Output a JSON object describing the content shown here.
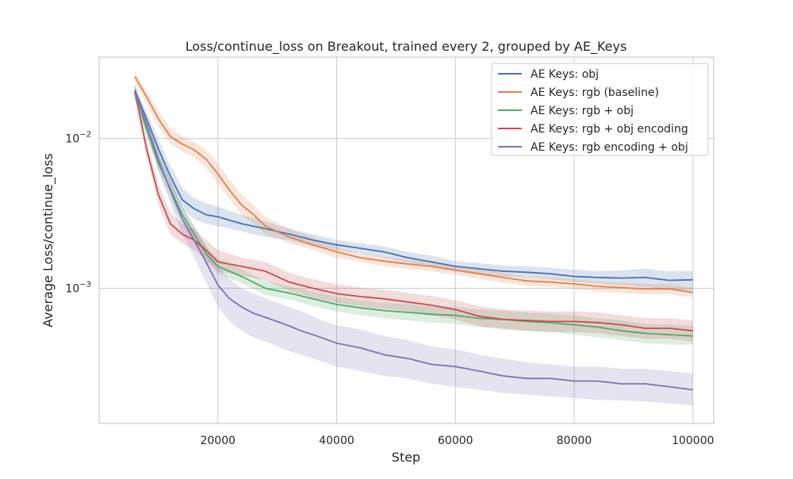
{
  "chart_data": {
    "type": "line",
    "title": "Loss/continue_loss on Breakout, trained every 2, grouped by AE_Keys",
    "xlabel": "Step",
    "ylabel": "Average Loss/continue_loss",
    "xlim": [
      0,
      103500
    ],
    "ylim": [
      0.000125,
      0.035
    ],
    "yscale": "log",
    "xticks": [
      20000,
      40000,
      60000,
      80000,
      100000
    ],
    "xtick_labels": [
      "20000",
      "40000",
      "60000",
      "80000",
      "100000"
    ],
    "yticks": [
      0.01,
      0.001
    ],
    "ytick_labels": [
      {
        "base": "10",
        "exp": "−2"
      },
      {
        "base": "10",
        "exp": "−3"
      }
    ],
    "grid": true,
    "legend_position": "top-right",
    "series": [
      {
        "name": "AE Keys: obj",
        "color": "#4c72b0",
        "x": [
          6000,
          8000,
          10000,
          12000,
          14000,
          16000,
          18000,
          20000,
          24000,
          28000,
          32000,
          36000,
          40000,
          44000,
          48000,
          52000,
          56000,
          60000,
          64000,
          68000,
          72000,
          76000,
          80000,
          84000,
          88000,
          92000,
          96000,
          100000
        ],
        "y": [
          0.021,
          0.0135,
          0.0085,
          0.0056,
          0.0039,
          0.0034,
          0.0031,
          0.003,
          0.0027,
          0.0025,
          0.0023,
          0.0021,
          0.00195,
          0.00185,
          0.00175,
          0.0016,
          0.0015,
          0.0014,
          0.00135,
          0.0013,
          0.00128,
          0.00125,
          0.0012,
          0.00118,
          0.00117,
          0.00118,
          0.00113,
          0.00114
        ],
        "lower": [
          0.019,
          0.012,
          0.0074,
          0.0048,
          0.0034,
          0.0029,
          0.0027,
          0.0026,
          0.0024,
          0.0022,
          0.0021,
          0.0019,
          0.0018,
          0.0017,
          0.0016,
          0.00148,
          0.00138,
          0.0013,
          0.00125,
          0.0012,
          0.00118,
          0.00115,
          0.0011,
          0.00108,
          0.00105,
          0.00102,
          0.00098,
          0.00097
        ],
        "upper": [
          0.023,
          0.015,
          0.0098,
          0.0066,
          0.0047,
          0.004,
          0.0037,
          0.0035,
          0.0031,
          0.0028,
          0.0025,
          0.0023,
          0.0021,
          0.002,
          0.0019,
          0.00175,
          0.00165,
          0.00152,
          0.00147,
          0.00142,
          0.0014,
          0.00137,
          0.00133,
          0.0013,
          0.00132,
          0.00135,
          0.0013,
          0.0013
        ]
      },
      {
        "name": "AE Keys: rgb (baseline)",
        "color": "#dd8452",
        "x": [
          6000,
          8000,
          10000,
          12000,
          14000,
          16000,
          18000,
          20000,
          22000,
          24000,
          26000,
          28000,
          32000,
          36000,
          40000,
          44000,
          48000,
          52000,
          56000,
          60000,
          64000,
          68000,
          72000,
          76000,
          80000,
          84000,
          88000,
          92000,
          96000,
          100000
        ],
        "y": [
          0.026,
          0.019,
          0.0135,
          0.0103,
          0.0092,
          0.0084,
          0.0073,
          0.0058,
          0.0045,
          0.0036,
          0.0031,
          0.0026,
          0.0022,
          0.00195,
          0.00175,
          0.0016,
          0.00152,
          0.00145,
          0.0014,
          0.00132,
          0.00125,
          0.00118,
          0.00112,
          0.0011,
          0.00107,
          0.00103,
          0.00101,
          0.00099,
          0.00099,
          0.00094
        ],
        "lower": [
          0.024,
          0.017,
          0.012,
          0.0092,
          0.0082,
          0.0075,
          0.0064,
          0.005,
          0.0039,
          0.0031,
          0.0027,
          0.0023,
          0.002,
          0.0018,
          0.0016,
          0.0015,
          0.0014,
          0.00135,
          0.0013,
          0.00123,
          0.00115,
          0.00109,
          0.00104,
          0.00102,
          0.00099,
          0.00095,
          0.00093,
          0.00091,
          0.00091,
          0.00087
        ],
        "upper": [
          0.028,
          0.021,
          0.0152,
          0.0118,
          0.0104,
          0.0095,
          0.0084,
          0.0068,
          0.0053,
          0.0042,
          0.0036,
          0.003,
          0.0025,
          0.0022,
          0.0019,
          0.0017,
          0.00162,
          0.00155,
          0.0015,
          0.00142,
          0.00135,
          0.00127,
          0.0012,
          0.00118,
          0.00115,
          0.00111,
          0.00109,
          0.00107,
          0.00107,
          0.00101
        ]
      },
      {
        "name": "AE Keys: rgb + obj",
        "color": "#55a868",
        "x": [
          6000,
          8000,
          10000,
          12000,
          14000,
          16000,
          18000,
          20000,
          24000,
          28000,
          32000,
          36000,
          40000,
          44000,
          48000,
          52000,
          56000,
          60000,
          64000,
          68000,
          72000,
          76000,
          80000,
          84000,
          88000,
          92000,
          96000,
          100000
        ],
        "y": [
          0.021,
          0.0115,
          0.0068,
          0.0046,
          0.0031,
          0.0023,
          0.0017,
          0.0014,
          0.0012,
          0.001,
          0.00093,
          0.00085,
          0.00078,
          0.00074,
          0.00071,
          0.00069,
          0.00067,
          0.00066,
          0.00063,
          0.00062,
          0.0006,
          0.00059,
          0.00057,
          0.00055,
          0.00052,
          0.0005,
          0.00049,
          0.00048
        ],
        "lower": [
          0.019,
          0.0102,
          0.006,
          0.004,
          0.0027,
          0.002,
          0.0015,
          0.00125,
          0.00108,
          0.0009,
          0.00084,
          0.00076,
          0.0007,
          0.00066,
          0.00063,
          0.00061,
          0.00059,
          0.00058,
          0.00055,
          0.00054,
          0.00052,
          0.00051,
          0.00049,
          0.00047,
          0.00045,
          0.00043,
          0.00042,
          0.00042
        ],
        "upper": [
          0.023,
          0.0128,
          0.0077,
          0.0053,
          0.0035,
          0.0026,
          0.0019,
          0.00158,
          0.00133,
          0.00112,
          0.00103,
          0.00095,
          0.00088,
          0.00083,
          0.0008,
          0.00078,
          0.00076,
          0.00075,
          0.00072,
          0.00071,
          0.00069,
          0.00068,
          0.00066,
          0.00063,
          0.00061,
          0.00058,
          0.00057,
          0.00056
        ]
      },
      {
        "name": "AE Keys: rgb + obj encoding",
        "color": "#c44e52",
        "x": [
          6000,
          8000,
          10000,
          12000,
          14000,
          16000,
          18000,
          20000,
          24000,
          28000,
          32000,
          36000,
          40000,
          44000,
          48000,
          52000,
          56000,
          60000,
          64000,
          68000,
          72000,
          76000,
          80000,
          84000,
          88000,
          92000,
          96000,
          100000
        ],
        "y": [
          0.021,
          0.0085,
          0.0042,
          0.0027,
          0.0023,
          0.0021,
          0.0018,
          0.0015,
          0.0014,
          0.0013,
          0.0011,
          0.001,
          0.00092,
          0.00088,
          0.00085,
          0.00081,
          0.00077,
          0.00072,
          0.00065,
          0.00062,
          0.00061,
          0.0006,
          0.0006,
          0.00059,
          0.00057,
          0.00054,
          0.00054,
          0.00052
        ],
        "lower": [
          0.019,
          0.0075,
          0.0036,
          0.0023,
          0.002,
          0.0018,
          0.00155,
          0.0013,
          0.00122,
          0.00113,
          0.00096,
          0.00087,
          0.0008,
          0.00076,
          0.00073,
          0.0007,
          0.00066,
          0.00062,
          0.00056,
          0.00053,
          0.00052,
          0.00051,
          0.00051,
          0.0005,
          0.00048,
          0.00046,
          0.00046,
          0.00044
        ],
        "upper": [
          0.023,
          0.0097,
          0.0049,
          0.0032,
          0.0027,
          0.0025,
          0.0021,
          0.0018,
          0.0016,
          0.0015,
          0.00127,
          0.00115,
          0.00106,
          0.00101,
          0.00098,
          0.00093,
          0.00089,
          0.00083,
          0.00076,
          0.00072,
          0.00071,
          0.0007,
          0.0007,
          0.00069,
          0.00066,
          0.00063,
          0.00063,
          0.00061
        ]
      },
      {
        "name": "AE Keys: rgb encoding + obj",
        "color": "#8172b3",
        "x": [
          6000,
          8000,
          10000,
          12000,
          14000,
          16000,
          18000,
          20000,
          22000,
          24000,
          26000,
          28000,
          30000,
          32000,
          34000,
          36000,
          38000,
          40000,
          44000,
          48000,
          52000,
          56000,
          60000,
          64000,
          68000,
          72000,
          76000,
          80000,
          84000,
          88000,
          92000,
          96000,
          100000
        ],
        "y": [
          0.02,
          0.0125,
          0.0072,
          0.0045,
          0.0029,
          0.0021,
          0.0015,
          0.00105,
          0.00085,
          0.00075,
          0.00068,
          0.00064,
          0.0006,
          0.00056,
          0.00052,
          0.00049,
          0.00046,
          0.00043,
          0.0004,
          0.00036,
          0.00034,
          0.00031,
          0.0003,
          0.00028,
          0.00026,
          0.00025,
          0.00025,
          0.00024,
          0.00024,
          0.00023,
          0.00023,
          0.00022,
          0.00021
        ],
        "lower": [
          0.018,
          0.011,
          0.0061,
          0.0037,
          0.0023,
          0.0016,
          0.0011,
          0.00075,
          0.0006,
          0.00052,
          0.00047,
          0.00044,
          0.00041,
          0.00038,
          0.00036,
          0.00034,
          0.00032,
          0.0003,
          0.00028,
          0.00026,
          0.00025,
          0.00023,
          0.00022,
          0.00021,
          0.0002,
          0.000195,
          0.00019,
          0.000185,
          0.00018,
          0.000178,
          0.000175,
          0.00017,
          0.000165
        ],
        "upper": [
          0.022,
          0.014,
          0.0083,
          0.0053,
          0.0035,
          0.0026,
          0.0019,
          0.0014,
          0.00115,
          0.001,
          0.00092,
          0.00086,
          0.0008,
          0.00075,
          0.0007,
          0.00065,
          0.0006,
          0.00057,
          0.00053,
          0.00048,
          0.00045,
          0.00041,
          0.00039,
          0.00036,
          0.00034,
          0.00032,
          0.00031,
          0.0003,
          0.0003,
          0.00029,
          0.00029,
          0.00028,
          0.00027
        ]
      }
    ]
  }
}
